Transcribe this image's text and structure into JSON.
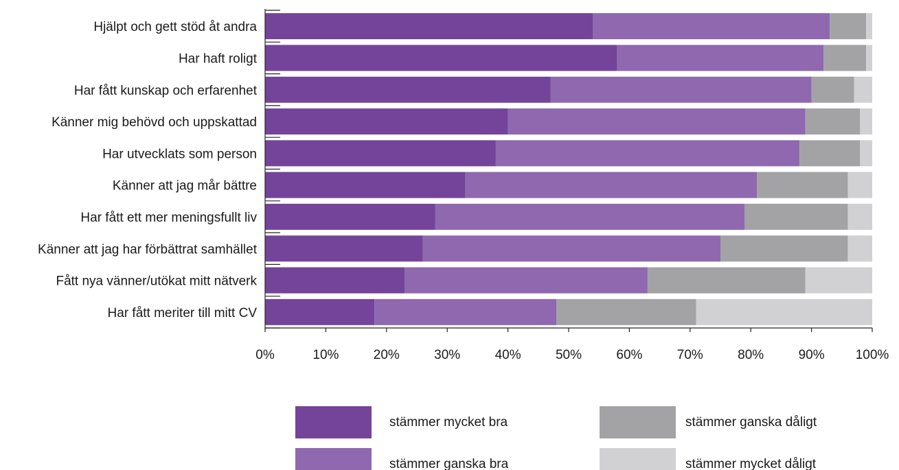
{
  "chart_data": {
    "type": "bar",
    "orientation": "horizontal",
    "stacked": true,
    "categories": [
      "Hjälpt och gett stöd åt andra",
      "Har haft roligt",
      "Har fått kunskap och erfarenhet",
      "Känner mig behövd och uppskattad",
      "Har utvecklats som person",
      "Känner att jag mår bättre",
      "Har fått ett mer meningsfullt liv",
      "Känner att jag har förbättrat samhället",
      "Fått nya vänner/utökat mitt nätverk",
      "Har fått meriter till mitt CV"
    ],
    "series": [
      {
        "name": "stämmer mycket bra",
        "color": "#74449a",
        "values": [
          54,
          58,
          47,
          40,
          38,
          33,
          28,
          26,
          23,
          18
        ]
      },
      {
        "name": "stämmer ganska bra",
        "color": "#8f68b0",
        "values": [
          39,
          34,
          43,
          49,
          50,
          48,
          51,
          49,
          40,
          30
        ]
      },
      {
        "name": "stämmer ganska dåligt",
        "color": "#a3a3a6",
        "values": [
          6,
          7,
          7,
          9,
          10,
          15,
          17,
          21,
          26,
          23
        ]
      },
      {
        "name": "stämmer mycket dåligt",
        "color": "#d1d1d3",
        "values": [
          1,
          1,
          3,
          2,
          2,
          4,
          4,
          4,
          11,
          29
        ]
      }
    ],
    "xlim": [
      0,
      100
    ],
    "x_ticks": [
      "0%",
      "10%",
      "20%",
      "30%",
      "40%",
      "50%",
      "60%",
      "70%",
      "80%",
      "90%",
      "100%"
    ],
    "legend_position": "bottom",
    "grid": false,
    "title": "",
    "xlabel": "",
    "ylabel": ""
  }
}
